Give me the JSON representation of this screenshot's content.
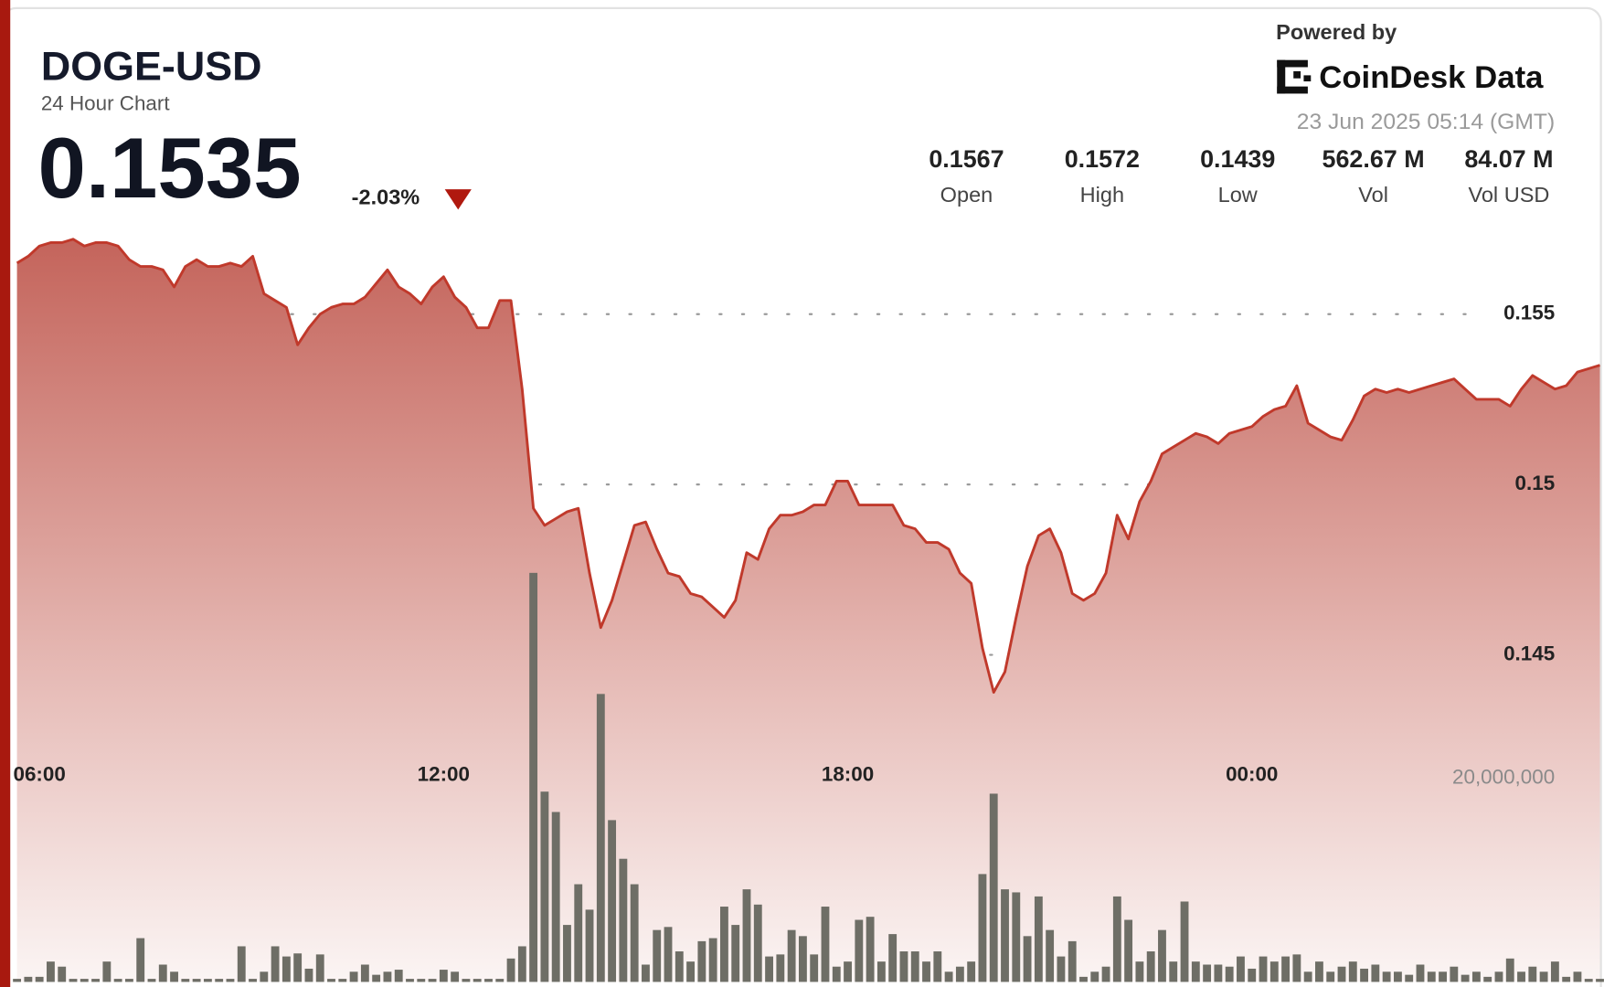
{
  "header": {
    "symbol": "DOGE-USD",
    "subtitle": "24 Hour Chart",
    "price": "0.1535",
    "change": "-2.03%",
    "powered_by": "Powered by",
    "brand": "CoinDesk Data",
    "timestamp": "23 Jun 2025 05:14 (GMT)"
  },
  "stats": [
    {
      "value": "0.1567",
      "label": "Open"
    },
    {
      "value": "0.1572",
      "label": "High"
    },
    {
      "value": "0.1439",
      "label": "Low"
    },
    {
      "value": "562.67 M",
      "label": "Vol"
    },
    {
      "value": "84.07 M",
      "label": "Vol USD"
    }
  ],
  "chart_data": {
    "type": "line",
    "x": [
      340,
      350,
      360,
      370,
      380,
      390,
      400,
      410,
      420,
      430,
      440,
      450,
      460,
      470,
      480,
      490,
      500,
      510,
      520,
      530,
      540,
      550,
      560,
      570,
      580,
      590,
      600,
      610,
      620,
      630,
      640,
      650,
      660,
      670,
      680,
      690,
      700,
      710,
      720,
      730,
      740,
      750,
      760,
      770,
      780,
      790,
      800,
      810,
      820,
      830,
      840,
      850,
      860,
      870,
      880,
      890,
      900,
      910,
      920,
      930,
      940,
      950,
      960,
      970,
      980,
      990,
      1000,
      1010,
      1020,
      1030,
      1040,
      1050,
      1060,
      1070,
      1080,
      1090,
      1100,
      1110,
      1120,
      1130,
      1140,
      1150,
      1160,
      1170,
      1180,
      1190,
      1200,
      1210,
      1220,
      1230,
      1240,
      1250,
      1260,
      1270,
      1280,
      1290,
      1300,
      1310,
      1320,
      1330,
      1340,
      1350,
      1360,
      1370,
      1380,
      1390,
      1400,
      1410,
      1420,
      1430,
      1440,
      1450,
      1460,
      1470,
      1480,
      1490,
      1500,
      1510,
      1520,
      1530,
      1540,
      1550,
      1560,
      1570,
      1580,
      1590,
      1600,
      1610,
      1620,
      1630,
      1640,
      1650,
      1660,
      1670,
      1680,
      1690,
      1700,
      1710,
      1720,
      1730,
      1740,
      1750
    ],
    "xlim": [
      334,
      1750
    ],
    "xticks": [
      {
        "value": 360,
        "label": "06:00"
      },
      {
        "value": 720,
        "label": "12:00"
      },
      {
        "value": 1080,
        "label": "18:00"
      },
      {
        "value": 1440,
        "label": "00:00"
      }
    ],
    "ylim": [
      0.1354,
      0.1578
    ],
    "yticks": [
      0.145,
      0.15,
      0.155
    ],
    "y2lim": [
      0,
      75000000
    ],
    "y2ticks": [
      {
        "value": 20000000,
        "label": "20,000,000"
      }
    ],
    "grid": true,
    "series": [
      {
        "color": "#c0392b",
        "values": [
          0.1565,
          0.1567,
          0.157,
          0.1571,
          0.1571,
          0.1572,
          0.157,
          0.1571,
          0.1571,
          0.157,
          0.1566,
          0.1564,
          0.1564,
          0.1563,
          0.1558,
          0.1564,
          0.1566,
          0.1564,
          0.1564,
          0.1565,
          0.1564,
          0.1567,
          0.1556,
          0.1554,
          0.1552,
          0.1541,
          0.1546,
          0.155,
          0.1552,
          0.1553,
          0.1553,
          0.1555,
          0.1559,
          0.1563,
          0.1558,
          0.1556,
          0.1553,
          0.1558,
          0.1561,
          0.1555,
          0.1552,
          0.1546,
          0.1546,
          0.1554,
          0.1554,
          0.1528,
          0.1493,
          0.1488,
          0.149,
          0.1492,
          0.1493,
          0.1474,
          0.1458,
          0.1466,
          0.1477,
          0.1488,
          0.1489,
          0.1481,
          0.1474,
          0.1473,
          0.1468,
          0.1467,
          0.1464,
          0.1461,
          0.1466,
          0.148,
          0.1478,
          0.1487,
          0.1491,
          0.1491,
          0.1492,
          0.1494,
          0.1494,
          0.1501,
          0.1501,
          0.1494,
          0.1494,
          0.1494,
          0.1494,
          0.1488,
          0.1487,
          0.1483,
          0.1483,
          0.1481,
          0.1474,
          0.1471,
          0.1452,
          0.1439,
          0.1445,
          0.1461,
          0.1476,
          0.1485,
          0.1487,
          0.148,
          0.1468,
          0.1466,
          0.1468,
          0.1474,
          0.1491,
          0.1484,
          0.1495,
          0.1501,
          0.1509,
          0.1511,
          0.1513,
          0.1515,
          0.1514,
          0.1512,
          0.1515,
          0.1516,
          0.1517,
          0.152,
          0.1522,
          0.1523,
          0.1529,
          0.1518,
          0.1516,
          0.1514,
          0.1513,
          0.1519,
          0.1526,
          0.1528,
          0.1527,
          0.1528,
          0.1527,
          0.1528,
          0.1529,
          0.153,
          0.1531,
          0.1528,
          0.1525,
          0.1525,
          0.1525,
          0.1523,
          0.1528,
          0.1532,
          0.153,
          0.1528,
          0.1529,
          0.1533,
          0.1534,
          0.1535
        ]
      },
      {
        "type": "bar",
        "axis": "y2",
        "color": "#6e6e66",
        "values": [
          300000,
          500000,
          500000,
          2000000,
          1500000,
          300000,
          300000,
          300000,
          2000000,
          300000,
          300000,
          4300000,
          300000,
          1700000,
          1000000,
          300000,
          300000,
          300000,
          300000,
          300000,
          3500000,
          300000,
          1000000,
          3500000,
          2500000,
          2800000,
          1300000,
          2700000,
          300000,
          300000,
          1000000,
          1700000,
          700000,
          1000000,
          1200000,
          300000,
          300000,
          300000,
          1200000,
          1000000,
          300000,
          300000,
          300000,
          300000,
          2300000,
          3500000,
          40200000,
          18700000,
          16700000,
          5600000,
          9600000,
          7100000,
          28300000,
          15900000,
          12100000,
          9600000,
          1700000,
          5100000,
          5400000,
          3000000,
          2000000,
          4000000,
          4300000,
          7400000,
          5600000,
          9100000,
          7600000,
          2500000,
          2700000,
          5100000,
          4500000,
          2700000,
          7400000,
          1500000,
          2000000,
          6100000,
          6400000,
          2000000,
          4700000,
          3000000,
          3000000,
          2000000,
          3000000,
          1000000,
          1500000,
          2000000,
          10600000,
          18500000,
          9100000,
          8800000,
          4500000,
          8400000,
          5100000,
          2500000,
          4000000,
          500000,
          1000000,
          1500000,
          8400000,
          6100000,
          2000000,
          3000000,
          5100000,
          2000000,
          7900000,
          2000000,
          1700000,
          1700000,
          1500000,
          2500000,
          1300000,
          2500000,
          2000000,
          2500000,
          2700000,
          1000000,
          2000000,
          1000000,
          1500000,
          2000000,
          1300000,
          1700000,
          1000000,
          1000000,
          700000,
          1700000,
          1000000,
          1000000,
          1500000,
          700000,
          1000000,
          500000,
          1000000,
          2300000,
          1000000,
          1500000,
          1000000,
          2000000,
          500000,
          1000000,
          300000,
          300000
        ]
      }
    ]
  }
}
